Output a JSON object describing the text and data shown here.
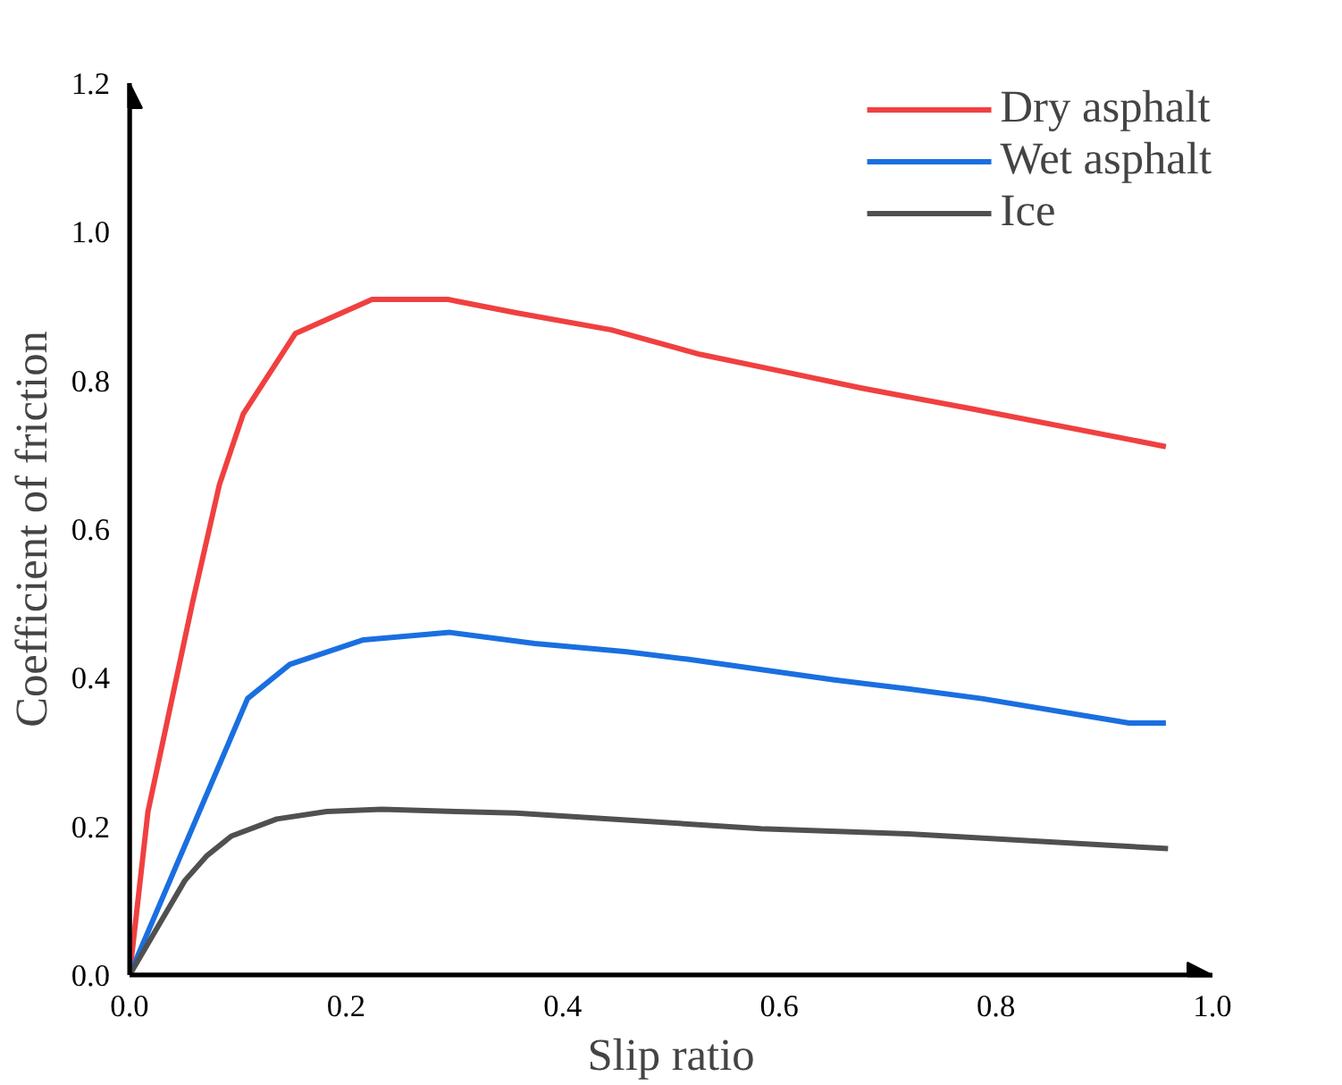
{
  "chart_data": {
    "type": "line",
    "xlabel": "Slip ratio",
    "ylabel": "Coefficient of friction",
    "xlim": [
      0,
      1.0
    ],
    "ylim": [
      0,
      1.2
    ],
    "xticks": [
      {
        "value": 0,
        "label": "0.0"
      },
      0.2,
      0.4,
      0.6,
      0.8,
      {
        "value": 1,
        "label": "1.0"
      }
    ],
    "yticks": [
      {
        "value": 0,
        "label": "0.0"
      },
      0.2,
      0.4,
      0.6,
      0.8,
      {
        "value": 1,
        "label": "1.0"
      },
      1.2
    ],
    "grid": false,
    "legend": "top right",
    "marker": "none",
    "line_style": "solid",
    "series": [
      {
        "name": "Dry asphalt",
        "color": "#f04040",
        "x": [
          0,
          0.017,
          0.058,
          0.083,
          0.105,
          0.153,
          0.224,
          0.294,
          0.357,
          0.445,
          0.527,
          0.6,
          0.675,
          0.777,
          0.957
        ],
        "values": [
          0,
          0.22,
          0.5,
          0.66,
          0.755,
          0.863,
          0.909,
          0.909,
          0.891,
          0.868,
          0.835,
          0.813,
          0.79,
          0.762,
          0.711
        ]
      },
      {
        "name": "Wet asphalt",
        "color": "#1a6fe0",
        "x": [
          0,
          0.109,
          0.148,
          0.216,
          0.296,
          0.374,
          0.459,
          0.515,
          0.651,
          0.719,
          0.787,
          0.923,
          0.957
        ],
        "values": [
          0,
          0.372,
          0.418,
          0.451,
          0.461,
          0.446,
          0.435,
          0.425,
          0.397,
          0.385,
          0.372,
          0.339,
          0.339
        ]
      },
      {
        "name": "Ice",
        "color": "#505050",
        "x": [
          0,
          0.051,
          0.071,
          0.094,
          0.136,
          0.182,
          0.233,
          0.301,
          0.357,
          0.583,
          0.719,
          0.959
        ],
        "values": [
          0,
          0.127,
          0.16,
          0.187,
          0.21,
          0.22,
          0.223,
          0.22,
          0.218,
          0.197,
          0.19,
          0.17
        ]
      }
    ]
  }
}
